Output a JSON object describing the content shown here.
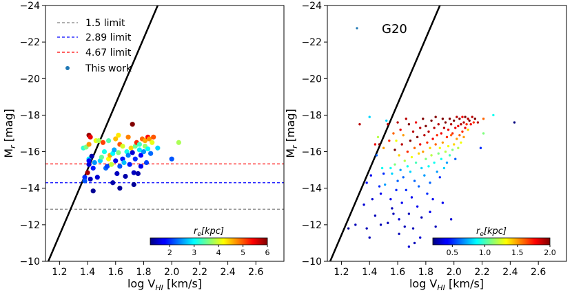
{
  "colors": {
    "limit_1_5": "#808080",
    "limit_2_89": "#0000ff",
    "limit_4_67": "#ff0000",
    "this_work_marker": "#1f77b4",
    "relation_line": "#000000"
  },
  "chart_data": [
    {
      "type": "scatter",
      "title": "",
      "xlabel": "log V",
      "xlabel_sub": "HI",
      "xlabel_unit": " [km/s]",
      "ylabel": "M",
      "ylabel_sub": "r",
      "ylabel_unit": " [mag]",
      "xlim": [
        1.1,
        2.8
      ],
      "ylim": [
        -10,
        -24
      ],
      "xticks": [
        "1.2",
        "1.4",
        "1.6",
        "1.8",
        "2.0",
        "2.2",
        "2.4",
        "2.6"
      ],
      "yticks": [
        "−24",
        "−22",
        "−20",
        "−18",
        "−16",
        "−14",
        "−12",
        "−10"
      ],
      "legend_position": "upper-left",
      "legend": [
        {
          "label": "1.5 limit",
          "kind": "dashed-line",
          "color": "#808080"
        },
        {
          "label": "2.89 limit",
          "kind": "dashed-line",
          "color": "#0000ff"
        },
        {
          "label": "4.67 limit",
          "kind": "dashed-line",
          "color": "#ff0000"
        },
        {
          "label": "This work",
          "kind": "marker",
          "color": "#1f77b4"
        }
      ],
      "hlines": [
        {
          "y": -12.85,
          "color": "#808080"
        },
        {
          "y": -14.3,
          "color": "#0000ff"
        },
        {
          "y": -15.33,
          "color": "#ff0000"
        }
      ],
      "relation_line": {
        "points": [
          [
            1.12,
            -10.0
          ],
          [
            1.9,
            -24.0
          ]
        ]
      },
      "colorbar": {
        "label": "r_e[kpc]",
        "label_main": "r",
        "label_sub": "e",
        "label_rest": "[kpc]",
        "min": 1.2,
        "max": 6.0,
        "ticks": [
          "2",
          "3",
          "4",
          "5",
          "6"
        ],
        "tick_values": [
          2,
          3,
          4,
          5,
          6
        ],
        "colormap": "jet",
        "position": "lower-right"
      },
      "marker_size": "large",
      "points": [
        [
          1.37,
          -16.2,
          3.2
        ],
        [
          1.38,
          -14.6,
          2.0
        ],
        [
          1.38,
          -14.4,
          2.2
        ],
        [
          1.39,
          -16.25,
          3.6
        ],
        [
          1.4,
          -14.85,
          5.8
        ],
        [
          1.41,
          -16.9,
          5.9
        ],
        [
          1.41,
          -16.4,
          4.7
        ],
        [
          1.41,
          -15.6,
          2.9
        ],
        [
          1.41,
          -15.3,
          1.6
        ],
        [
          1.41,
          -15.5,
          1.8
        ],
        [
          1.42,
          -14.5,
          1.5
        ],
        [
          1.42,
          -16.8,
          5.5
        ],
        [
          1.43,
          -15.75,
          1.4
        ],
        [
          1.44,
          -15.1,
          1.9
        ],
        [
          1.44,
          -13.85,
          1.3
        ],
        [
          1.45,
          -15.4,
          2.5
        ],
        [
          1.46,
          -16.6,
          4.1
        ],
        [
          1.47,
          -14.6,
          1.6
        ],
        [
          1.48,
          -16.6,
          3.8
        ],
        [
          1.49,
          -15.5,
          2.8
        ],
        [
          1.5,
          -15.7,
          3.5
        ],
        [
          1.51,
          -16.5,
          5.1
        ],
        [
          1.52,
          -16.0,
          3.1
        ],
        [
          1.53,
          -15.1,
          2.3
        ],
        [
          1.54,
          -15.2,
          2.1
        ],
        [
          1.55,
          -16.6,
          3.4
        ],
        [
          1.55,
          -15.6,
          4.2
        ],
        [
          1.56,
          -15.8,
          4.6
        ],
        [
          1.57,
          -15.3,
          3.9
        ],
        [
          1.58,
          -15.9,
          3.0
        ],
        [
          1.58,
          -14.3,
          1.4
        ],
        [
          1.59,
          -16.1,
          2.6
        ],
        [
          1.6,
          -16.7,
          4.5
        ],
        [
          1.6,
          -15.5,
          1.7
        ],
        [
          1.61,
          -14.8,
          1.5
        ],
        [
          1.62,
          -16.9,
          4.3
        ],
        [
          1.62,
          -15.95,
          3.6
        ],
        [
          1.63,
          -16.4,
          5.0
        ],
        [
          1.63,
          -15.2,
          2.2
        ],
        [
          1.63,
          -14.0,
          1.3
        ],
        [
          1.65,
          -15.6,
          1.9
        ],
        [
          1.65,
          -16.3,
          4.0
        ],
        [
          1.66,
          -15.4,
          2.7
        ],
        [
          1.67,
          -14.65,
          1.4
        ],
        [
          1.68,
          -16.0,
          3.1
        ],
        [
          1.69,
          -15.8,
          2.4
        ],
        [
          1.69,
          -16.8,
          4.8
        ],
        [
          1.7,
          -15.3,
          1.9
        ],
        [
          1.71,
          -16.2,
          4.4
        ],
        [
          1.72,
          -17.5,
          6.0
        ],
        [
          1.72,
          -15.95,
          1.6
        ],
        [
          1.73,
          -14.85,
          1.5
        ],
        [
          1.73,
          -14.2,
          1.3
        ],
        [
          1.74,
          -15.6,
          2.0
        ],
        [
          1.74,
          -16.3,
          3.5
        ],
        [
          1.75,
          -16.5,
          5.2
        ],
        [
          1.76,
          -14.8,
          1.4
        ],
        [
          1.77,
          -16.1,
          2.9
        ],
        [
          1.77,
          -16.4,
          3.3
        ],
        [
          1.78,
          -15.2,
          1.7
        ],
        [
          1.78,
          -15.8,
          1.8
        ],
        [
          1.79,
          -16.7,
          4.9
        ],
        [
          1.8,
          -16.0,
          2.5
        ],
        [
          1.81,
          -16.3,
          3.7
        ],
        [
          1.81,
          -16.6,
          4.6
        ],
        [
          1.82,
          -15.4,
          2.1
        ],
        [
          1.83,
          -16.8,
          5.4
        ],
        [
          1.83,
          -16.15,
          3.0
        ],
        [
          1.84,
          -16.7,
          4.7
        ],
        [
          1.85,
          -15.9,
          2.3
        ],
        [
          1.86,
          -16.5,
          4.1
        ],
        [
          1.87,
          -16.8,
          5.0
        ],
        [
          1.9,
          -16.2,
          2.8
        ],
        [
          2.0,
          -15.6,
          2.2
        ],
        [
          2.05,
          -16.5,
          3.8
        ]
      ]
    },
    {
      "type": "scatter",
      "title": "",
      "xlabel": "log V",
      "xlabel_sub": "HI",
      "xlabel_unit": " [km/s]",
      "ylabel": "M",
      "ylabel_sub": "r",
      "ylabel_unit": " [mag]",
      "xlim": [
        1.1,
        2.8
      ],
      "ylim": [
        -10,
        -24
      ],
      "xticks": [
        "1.2",
        "1.4",
        "1.6",
        "1.8",
        "2.0",
        "2.2",
        "2.4",
        "2.6"
      ],
      "yticks": [
        "−24",
        "−22",
        "−20",
        "−18",
        "−16",
        "−14",
        "−12",
        "−10"
      ],
      "legend_position": "upper-left",
      "legend": [
        {
          "label": "G20",
          "kind": "marker",
          "color": "#1f77b4"
        }
      ],
      "relation_line": {
        "points": [
          [
            1.12,
            -10.0
          ],
          [
            1.9,
            -24.0
          ]
        ]
      },
      "colorbar": {
        "label": "r_e[kpc]",
        "label_main": "r",
        "label_sub": "e",
        "label_rest": "[kpc]",
        "min": 0.2,
        "max": 2.0,
        "ticks": [
          "0.5",
          "1.0",
          "1.5",
          "2.0"
        ],
        "tick_values": [
          0.5,
          1.0,
          1.5,
          2.0
        ],
        "colormap": "jet",
        "position": "lower-right"
      },
      "marker_size": "small",
      "points": [
        [
          1.25,
          -11.8,
          0.25
        ],
        [
          1.3,
          -12.0,
          0.3
        ],
        [
          1.33,
          -17.5,
          1.9
        ],
        [
          1.36,
          -13.1,
          0.35
        ],
        [
          1.38,
          -14.3,
          0.45
        ],
        [
          1.38,
          -11.8,
          0.3
        ],
        [
          1.4,
          -11.3,
          0.3
        ],
        [
          1.4,
          -17.9,
          0.8
        ],
        [
          1.41,
          -14.7,
          0.4
        ],
        [
          1.42,
          -13.4,
          0.35
        ],
        [
          1.44,
          -12.5,
          0.3
        ],
        [
          1.44,
          -16.4,
          1.8
        ],
        [
          1.45,
          -15.8,
          0.6
        ],
        [
          1.46,
          -16.8,
          1.2
        ],
        [
          1.47,
          -14.1,
          0.5
        ],
        [
          1.47,
          -16.4,
          2.0
        ],
        [
          1.48,
          -13.7,
          0.4
        ],
        [
          1.49,
          -15.1,
          0.9
        ],
        [
          1.5,
          -16.2,
          1.5
        ],
        [
          1.5,
          -14.8,
          0.5
        ],
        [
          1.51,
          -14.2,
          0.7
        ],
        [
          1.52,
          -17.7,
          0.8
        ],
        [
          1.53,
          -12.1,
          0.3
        ],
        [
          1.53,
          -17.5,
          1.9
        ],
        [
          1.54,
          -16.6,
          1.7
        ],
        [
          1.55,
          -15.1,
          0.9
        ],
        [
          1.55,
          -13.4,
          0.4
        ],
        [
          1.56,
          -14.8,
          0.8
        ],
        [
          1.57,
          -17.0,
          1.6
        ],
        [
          1.57,
          -12.6,
          0.3
        ],
        [
          1.58,
          -16.1,
          2.0
        ],
        [
          1.58,
          -15.3,
          1.1
        ],
        [
          1.59,
          -13.9,
          0.5
        ],
        [
          1.59,
          -16.6,
          1.3
        ],
        [
          1.6,
          -17.6,
          1.9
        ],
        [
          1.6,
          -14.4,
          0.6
        ],
        [
          1.61,
          -15.8,
          1.4
        ],
        [
          1.61,
          -12.3,
          0.35
        ],
        [
          1.62,
          -17.2,
          1.8
        ],
        [
          1.62,
          -15.0,
          0.7
        ],
        [
          1.63,
          -16.4,
          1.9
        ],
        [
          1.63,
          -13.2,
          0.4
        ],
        [
          1.64,
          -14.6,
          0.6
        ],
        [
          1.64,
          -16.9,
          1.5
        ],
        [
          1.65,
          -15.5,
          1.2
        ],
        [
          1.65,
          -11.9,
          0.3
        ],
        [
          1.66,
          -17.8,
          1.9
        ],
        [
          1.66,
          -13.9,
          0.5
        ],
        [
          1.67,
          -16.0,
          1.7
        ],
        [
          1.67,
          -15.2,
          0.9
        ],
        [
          1.68,
          -12.6,
          0.3
        ],
        [
          1.68,
          -17.5,
          2.0
        ],
        [
          1.69,
          -14.9,
          0.8
        ],
        [
          1.69,
          -16.6,
          2.0
        ],
        [
          1.7,
          -13.5,
          0.4
        ],
        [
          1.7,
          -15.7,
          1.3
        ],
        [
          1.71,
          -17.1,
          1.9
        ],
        [
          1.71,
          -11.8,
          0.3
        ],
        [
          1.72,
          -16.2,
          1.6
        ],
        [
          1.72,
          -14.4,
          0.6
        ],
        [
          1.73,
          -17.6,
          1.8
        ],
        [
          1.73,
          -15.4,
          1.0
        ],
        [
          1.74,
          -13.0,
          0.4
        ],
        [
          1.74,
          -16.8,
          2.0
        ],
        [
          1.75,
          -15.9,
          1.4
        ],
        [
          1.75,
          -14.1,
          0.6
        ],
        [
          1.76,
          -17.3,
          1.9
        ],
        [
          1.76,
          -16.4,
          1.8
        ],
        [
          1.77,
          -12.4,
          0.3
        ],
        [
          1.77,
          -15.1,
          0.8
        ],
        [
          1.78,
          -17.8,
          2.0
        ],
        [
          1.78,
          -16.0,
          1.5
        ],
        [
          1.79,
          -14.7,
          0.7
        ],
        [
          1.79,
          -16.9,
          1.9
        ],
        [
          1.8,
          -15.6,
          1.1
        ],
        [
          1.8,
          -17.4,
          2.0
        ],
        [
          1.81,
          -13.7,
          0.5
        ],
        [
          1.81,
          -16.5,
          1.7
        ],
        [
          1.82,
          -15.2,
          0.9
        ],
        [
          1.82,
          -17.1,
          1.9
        ],
        [
          1.83,
          -16.2,
          1.4
        ],
        [
          1.83,
          -14.3,
          0.6
        ],
        [
          1.84,
          -17.7,
          2.0
        ],
        [
          1.84,
          -15.8,
          1.2
        ],
        [
          1.85,
          -16.7,
          1.8
        ],
        [
          1.85,
          -13.4,
          0.4
        ],
        [
          1.86,
          -17.3,
          1.9
        ],
        [
          1.86,
          -15.4,
          0.9
        ],
        [
          1.87,
          -16.4,
          1.6
        ],
        [
          1.87,
          -17.9,
          2.0
        ],
        [
          1.88,
          -14.9,
          0.7
        ],
        [
          1.88,
          -16.9,
          1.7
        ],
        [
          1.89,
          -15.9,
          1.1
        ],
        [
          1.89,
          -17.5,
          1.9
        ],
        [
          1.9,
          -16.2,
          1.3
        ],
        [
          1.9,
          -14.6,
          0.5
        ],
        [
          1.91,
          -17.0,
          1.8
        ],
        [
          1.91,
          -15.6,
          0.9
        ],
        [
          1.92,
          -17.8,
          2.0
        ],
        [
          1.92,
          -16.5,
          1.5
        ],
        [
          1.93,
          -15.1,
          0.8
        ],
        [
          1.93,
          -17.3,
          1.9
        ],
        [
          1.94,
          -16.0,
          1.2
        ],
        [
          1.94,
          -17.6,
          2.0
        ],
        [
          1.95,
          -16.8,
          1.7
        ],
        [
          1.95,
          -15.4,
          0.7
        ],
        [
          1.96,
          -17.2,
          1.8
        ],
        [
          1.96,
          -16.3,
          1.3
        ],
        [
          1.97,
          -17.8,
          2.0
        ],
        [
          1.97,
          -15.8,
          1.0
        ],
        [
          1.98,
          -16.9,
          1.6
        ],
        [
          1.98,
          -17.5,
          1.9
        ],
        [
          1.99,
          -16.1,
          1.1
        ],
        [
          1.99,
          -17.0,
          1.7
        ],
        [
          2.0,
          -17.7,
          2.0
        ],
        [
          2.0,
          -16.4,
          1.4
        ],
        [
          2.01,
          -17.3,
          1.8
        ],
        [
          2.01,
          -15.6,
          0.6
        ],
        [
          2.02,
          -17.9,
          1.9
        ],
        [
          2.02,
          -16.7,
          1.5
        ],
        [
          2.03,
          -17.4,
          1.8
        ],
        [
          2.03,
          -16.2,
          1.2
        ],
        [
          2.04,
          -17.8,
          2.0
        ],
        [
          2.04,
          -16.9,
          1.6
        ],
        [
          2.05,
          -17.5,
          1.9
        ],
        [
          2.05,
          -16.5,
          1.3
        ],
        [
          2.06,
          -17.9,
          1.8
        ],
        [
          2.06,
          -17.1,
          1.7
        ],
        [
          2.07,
          -17.6,
          1.9
        ],
        [
          2.07,
          -16.8,
          1.5
        ],
        [
          2.08,
          -17.3,
          1.8
        ],
        [
          2.08,
          -17.9,
          2.0
        ],
        [
          2.09,
          -17.5,
          1.7
        ],
        [
          2.1,
          -17.8,
          1.9
        ],
        [
          2.1,
          -17.2,
          1.4
        ],
        [
          2.11,
          -17.7,
          2.0
        ],
        [
          2.12,
          -17.5,
          1.8
        ],
        [
          2.13,
          -17.9,
          1.9
        ],
        [
          2.14,
          -17.6,
          1.7
        ],
        [
          2.15,
          -17.8,
          2.0
        ],
        [
          2.17,
          -17.6,
          1.9
        ],
        [
          2.19,
          -16.2,
          0.5
        ],
        [
          2.21,
          -17.8,
          1.6
        ],
        [
          2.21,
          -17.0,
          1.1
        ],
        [
          2.28,
          -18.0,
          0.9
        ],
        [
          2.43,
          -17.6,
          0.2
        ],
        [
          1.87,
          -11.9,
          0.3
        ],
        [
          1.76,
          -11.3,
          0.35
        ],
        [
          1.72,
          -11.0,
          0.3
        ],
        [
          1.68,
          -10.8,
          0.35
        ],
        [
          1.83,
          -12.7,
          0.4
        ],
        [
          1.61,
          -11.5,
          0.3
        ],
        [
          1.92,
          -13.2,
          0.4
        ],
        [
          1.98,
          -12.3,
          0.35
        ],
        [
          1.56,
          -12.9,
          0.3
        ],
        [
          1.48,
          -12.0,
          0.3
        ]
      ]
    }
  ]
}
